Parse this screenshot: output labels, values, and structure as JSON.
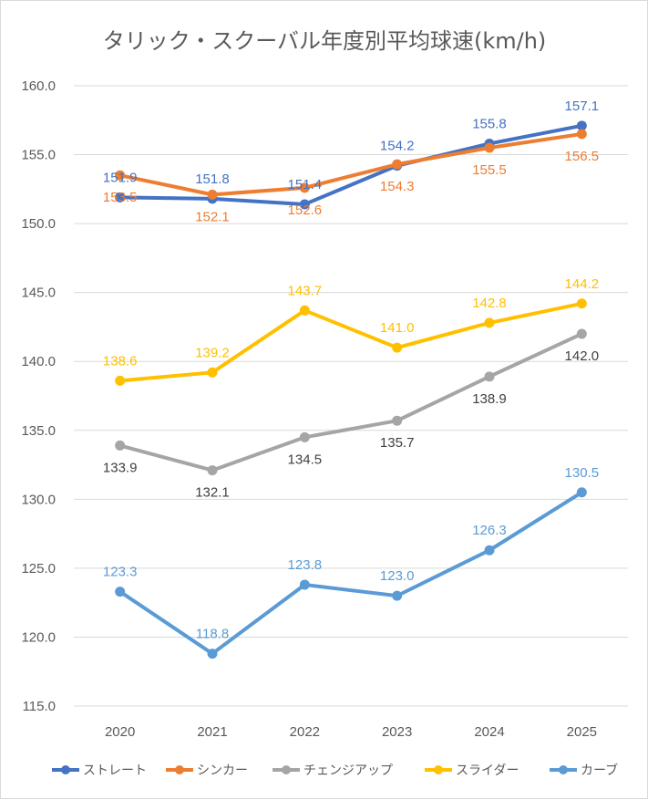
{
  "chart_data": {
    "type": "line",
    "title": "タリック・スクーバル年度別平均球速(km/h)",
    "xlabel": "",
    "ylabel": "",
    "ylim": [
      115.0,
      160.0
    ],
    "yticks": [
      "160.0",
      "155.0",
      "150.0",
      "145.0",
      "140.0",
      "135.0",
      "130.0",
      "125.0",
      "120.0",
      "115.0"
    ],
    "categories": [
      "2020",
      "2021",
      "2022",
      "2023",
      "2024",
      "2025"
    ],
    "grid": true,
    "legend_position": "bottom",
    "series": [
      {
        "name": "ストレート",
        "color": "#4472c4",
        "values": [
          151.9,
          151.8,
          151.4,
          154.2,
          155.8,
          157.1
        ],
        "labels": [
          "151.9",
          "151.8",
          "151.4",
          "154.2",
          "155.8",
          "157.1"
        ],
        "label_pos": [
          "above",
          "above",
          "above",
          "above",
          "above",
          "above"
        ]
      },
      {
        "name": "シンカー",
        "color": "#ed7d31",
        "values": [
          153.5,
          152.1,
          152.6,
          154.3,
          155.5,
          156.5
        ],
        "labels": [
          "153.5",
          "152.1",
          "152.6",
          "154.3",
          "155.5",
          "156.5"
        ],
        "label_pos": [
          "below",
          "below",
          "below",
          "below",
          "below",
          "below"
        ]
      },
      {
        "name": "チェンジアップ",
        "color": "#a5a5a5",
        "values": [
          133.9,
          132.1,
          134.5,
          135.7,
          138.9,
          142.0
        ],
        "labels": [
          "133.9",
          "132.1",
          "134.5",
          "135.7",
          "138.9",
          "142.0"
        ],
        "label_pos": [
          "below",
          "below",
          "below",
          "below",
          "below",
          "below"
        ]
      },
      {
        "name": "スライダー",
        "color": "#ffc000",
        "values": [
          138.6,
          139.2,
          143.7,
          141.0,
          142.8,
          144.2
        ],
        "labels": [
          "138.6",
          "139.2",
          "143.7",
          "141.0",
          "142.8",
          "144.2"
        ],
        "label_pos": [
          "above",
          "above",
          "above",
          "above",
          "above",
          "above"
        ]
      },
      {
        "name": "カーブ",
        "color": "#5b9bd5",
        "values": [
          123.3,
          118.8,
          123.8,
          123.0,
          126.3,
          130.5
        ],
        "labels": [
          "123.3",
          "118.8",
          "123.8",
          "123.0",
          "126.3",
          "130.5"
        ],
        "label_pos": [
          "above",
          "above",
          "above",
          "above",
          "above",
          "above"
        ]
      }
    ]
  }
}
